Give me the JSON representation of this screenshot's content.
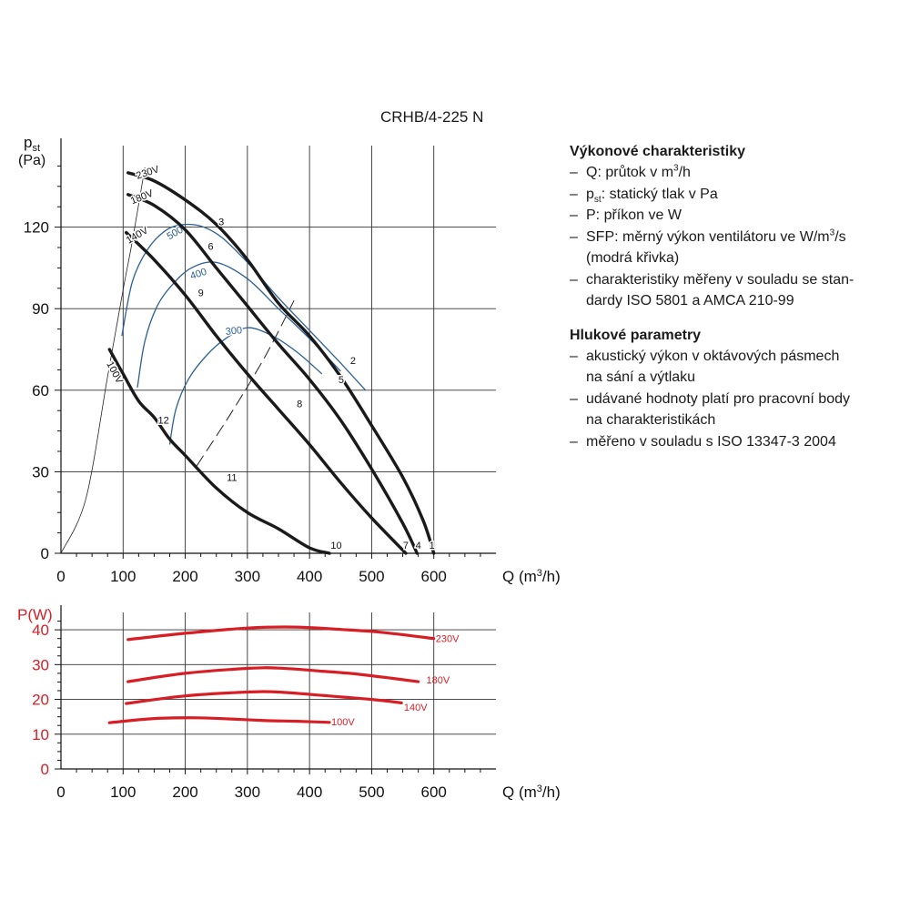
{
  "model_title": "CRHB/4-225 N",
  "legend": {
    "performance_heading": "Výkonové charakteristiky",
    "performance_items": [
      {
        "pre": "Q: průtok v m",
        "sup": "3",
        "post": "/h"
      },
      {
        "pre": "p",
        "sub": "st",
        "post": ": statický tlak v Pa"
      },
      {
        "pre": "P: příkon ve W"
      },
      {
        "pre": "SFP: měrný výkon ventilátoru ve W/m",
        "sup": "3",
        "post": "/s"
      },
      {
        "pre": "(modrá křivka)",
        "continuation": true
      },
      {
        "pre": "charakteristiky měřeny v souladu se stan-"
      },
      {
        "pre": "dardy ISO 5801 a AMCA 210-99",
        "continuation": true
      }
    ],
    "noise_heading": "Hlukové parametry",
    "noise_items": [
      {
        "pre": "akustický výkon v oktávových pásmech"
      },
      {
        "pre": "na sání a výtlaku",
        "continuation": true
      },
      {
        "pre": "udávané hodnoty platí pro pracovní body"
      },
      {
        "pre": "na charakteristikách",
        "continuation": true
      },
      {
        "pre": "měřeno v souladu s ISO 13347-3 2004"
      }
    ]
  },
  "chart_data": [
    {
      "type": "line",
      "ylabel": "p",
      "ylabel_sub": "st",
      "ylabel_unit": "(Pa)",
      "xlabel": "Q (m³/h)",
      "xlim": [
        0,
        700
      ],
      "ylim": [
        0,
        150
      ],
      "xticks": [
        0,
        100,
        200,
        300,
        400,
        500,
        600
      ],
      "yticks": [
        0,
        30,
        60,
        90,
        120
      ],
      "grid": true,
      "series": [
        {
          "name": "230V",
          "color": "#1a1a1a",
          "x": [
            108,
            150,
            200,
            250,
            300,
            350,
            400,
            450,
            500,
            550,
            583,
            600
          ],
          "y": [
            140,
            137,
            130,
            121,
            108,
            92,
            80,
            65,
            47,
            28,
            12,
            0
          ]
        },
        {
          "name": "180V",
          "color": "#1a1a1a",
          "x": [
            108,
            150,
            200,
            250,
            300,
            350,
            400,
            450,
            500,
            550,
            573
          ],
          "y": [
            132,
            128,
            119,
            105,
            91,
            77,
            64,
            49,
            31,
            11,
            0
          ]
        },
        {
          "name": "140V",
          "color": "#1a1a1a",
          "x": [
            105,
            150,
            200,
            250,
            300,
            350,
            400,
            450,
            500,
            555
          ],
          "y": [
            118,
            108,
            95,
            80,
            66,
            53,
            40,
            26,
            13,
            0
          ]
        },
        {
          "name": "100V",
          "color": "#1a1a1a",
          "x": [
            78,
            100,
            125,
            150,
            175,
            200,
            250,
            300,
            350,
            400,
            432
          ],
          "y": [
            75,
            66,
            56,
            50,
            42,
            36,
            24,
            15,
            9,
            2,
            0
          ]
        }
      ],
      "sfp_curves": [
        {
          "label": "500",
          "color": "#2c5f94",
          "x": [
            98,
            115,
            140,
            170,
            200,
            230,
            260,
            300,
            350,
            400,
            450,
            490
          ],
          "y": [
            80,
            100,
            112,
            119,
            121,
            120,
            116,
            107,
            94,
            82,
            70,
            60
          ]
        },
        {
          "label": "400",
          "color": "#2c5f94",
          "x": [
            123,
            135,
            155,
            180,
            210,
            250,
            300,
            350,
            400,
            450
          ],
          "y": [
            61,
            78,
            91,
            99,
            105,
            107,
            101,
            90,
            79,
            67
          ]
        },
        {
          "label": "300",
          "color": "#2c5f94",
          "x": [
            175,
            185,
            205,
            235,
            265,
            300,
            340,
            380,
            420
          ],
          "y": [
            40,
            53,
            64,
            73,
            79,
            83,
            80,
            74,
            66
          ]
        }
      ],
      "thin_curve": {
        "x": [
          0,
          40,
          75,
          100,
          115,
          135
        ],
        "y": [
          0,
          20,
          65,
          97,
          115,
          142
        ]
      },
      "dashed_line": {
        "x": [
          218,
          275,
          330,
          375
        ],
        "y": [
          32,
          52,
          73,
          93
        ]
      },
      "voltage_labels": [
        "230V",
        "180V",
        "140V",
        "100V"
      ],
      "point_labels": [
        {
          "label": "1",
          "x": 597,
          "y": 3
        },
        {
          "label": "2",
          "x": 470,
          "y": 71
        },
        {
          "label": "3",
          "x": 258,
          "y": 122
        },
        {
          "label": "4",
          "x": 575,
          "y": 3
        },
        {
          "label": "5",
          "x": 451,
          "y": 64
        },
        {
          "label": "6",
          "x": 241,
          "y": 113
        },
        {
          "label": "7",
          "x": 555,
          "y": 3
        },
        {
          "label": "8",
          "x": 384,
          "y": 55
        },
        {
          "label": "9",
          "x": 225,
          "y": 96
        },
        {
          "label": "10",
          "x": 443,
          "y": 3
        },
        {
          "label": "11",
          "x": 275,
          "y": 28
        },
        {
          "label": "12",
          "x": 165,
          "y": 49
        }
      ]
    },
    {
      "type": "line",
      "ylabel": "P(W)",
      "xlabel": "Q (m³/h)",
      "xlim": [
        0,
        700
      ],
      "ylim": [
        0,
        45
      ],
      "xticks": [
        0,
        100,
        200,
        300,
        400,
        500,
        600
      ],
      "yticks": [
        0,
        10,
        20,
        30,
        40
      ],
      "grid": true,
      "series": [
        {
          "name": "230V",
          "color": "#d81e25",
          "x": [
            108,
            200,
            300,
            375,
            450,
            515,
            600
          ],
          "y": [
            37.2,
            39,
            40.5,
            40.8,
            40.1,
            39.3,
            37.5
          ]
        },
        {
          "name": "180V",
          "color": "#d81e25",
          "x": [
            108,
            200,
            300,
            350,
            420,
            480,
            575
          ],
          "y": [
            25.1,
            27.5,
            28.9,
            29,
            28.1,
            27.2,
            25.1
          ]
        },
        {
          "name": "140V",
          "color": "#d81e25",
          "x": [
            105,
            200,
            300,
            350,
            430,
            500,
            548
          ],
          "y": [
            18.8,
            21,
            22.1,
            22.1,
            21,
            20,
            19
          ]
        },
        {
          "name": "100V",
          "color": "#d81e25",
          "x": [
            78,
            150,
            220,
            270,
            330,
            380,
            432
          ],
          "y": [
            13.3,
            14.5,
            14.7,
            14.4,
            13.9,
            13.7,
            13.4
          ]
        }
      ]
    }
  ]
}
